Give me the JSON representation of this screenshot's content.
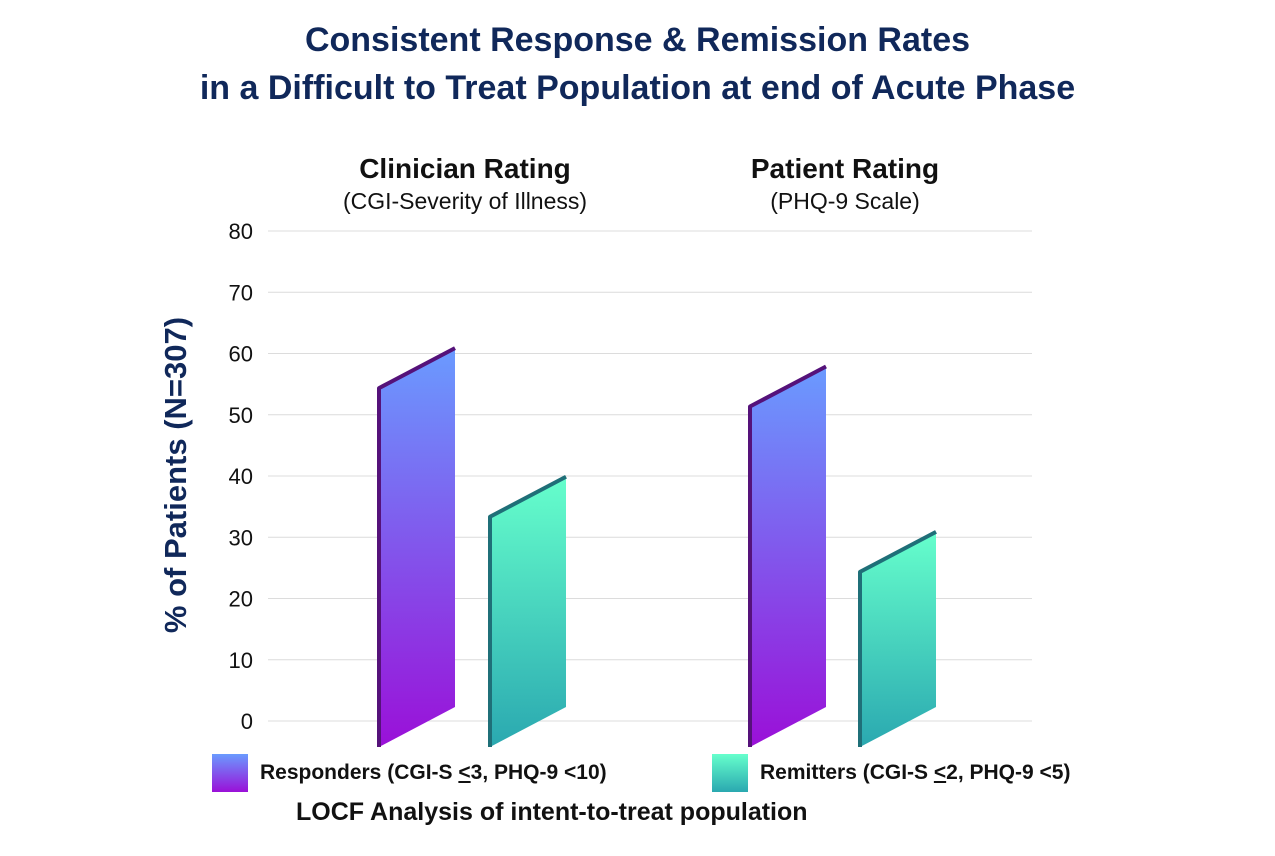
{
  "title_line1": "Consistent Response & Remission Rates",
  "title_line2": "in a Difficult to Treat Population at end of Acute Phase",
  "chart_data": {
    "type": "bar",
    "ylabel": "% of Patients (N=307)",
    "ylim": [
      0,
      80
    ],
    "yticks": [
      0,
      10,
      20,
      30,
      40,
      50,
      60,
      70,
      80
    ],
    "grid": true,
    "categories": [
      {
        "title": "Clinician Rating",
        "subtitle": "(CGI-Severity of Illness)"
      },
      {
        "title": "Patient Rating",
        "subtitle": "(PHQ-9 Scale)"
      }
    ],
    "series": [
      {
        "name": "Responders (CGI-S <3, PHQ-9 <10)",
        "values": [
          55,
          52
        ],
        "color_top": "#6a9bff",
        "color_bottom": "#9a10d8",
        "edge": "#55127a"
      },
      {
        "name": "Remitters (CGI-S <2, PHQ-9 <5)",
        "values": [
          34,
          25
        ],
        "color_top": "#66ffcc",
        "color_bottom": "#2aa8b0",
        "edge": "#1f6f78"
      }
    ],
    "footnote": "LOCF Analysis of intent-to-treat population"
  },
  "legend": [
    {
      "label_pre": "Responders (CGI-S ",
      "label_sym": "<",
      "label_post": "3, PHQ-9 <10)"
    },
    {
      "label_pre": "Remitters (CGI-S ",
      "label_sym": "<",
      "label_post": "2, PHQ-9 <5)"
    }
  ]
}
